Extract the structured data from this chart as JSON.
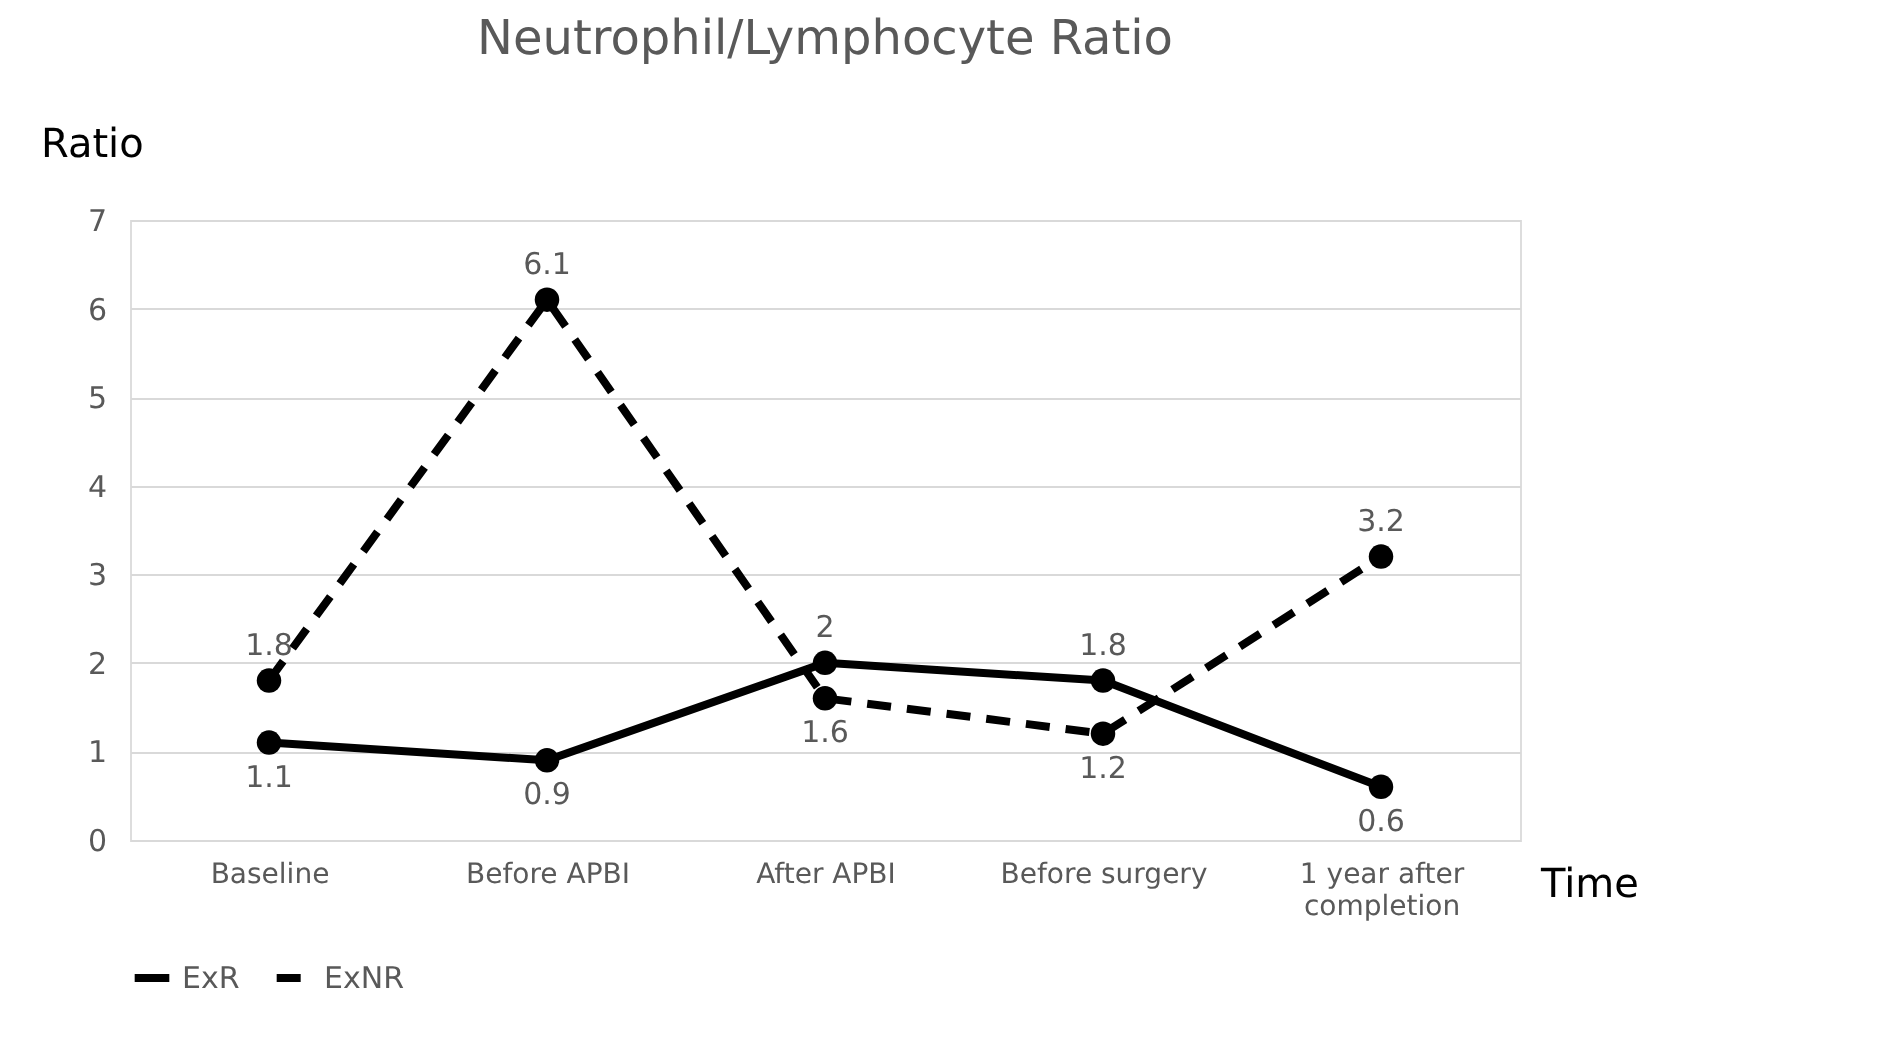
{
  "chart_data": {
    "type": "line",
    "title": "Neutrophil/Lymphocyte Ratio",
    "xlabel": "Time",
    "ylabel": "Ratio",
    "categories": [
      "Baseline",
      "Before APBI",
      "After APBI",
      "Before surgery",
      "1 year after completion"
    ],
    "series": [
      {
        "name": "ExR",
        "color": "#000000",
        "line_style": "solid",
        "values": [
          1.1,
          0.9,
          2,
          1.8,
          0.6
        ]
      },
      {
        "name": "ExNR",
        "color": "#000000",
        "line_style": "dashed",
        "values": [
          1.8,
          6.1,
          1.6,
          1.2,
          3.2
        ]
      }
    ],
    "ylim": [
      0,
      7
    ],
    "yticks": [
      0,
      1,
      2,
      3,
      4,
      5,
      6,
      7
    ],
    "grid": "y",
    "legend": "bottom",
    "marker": "circle",
    "data_labels": true
  }
}
